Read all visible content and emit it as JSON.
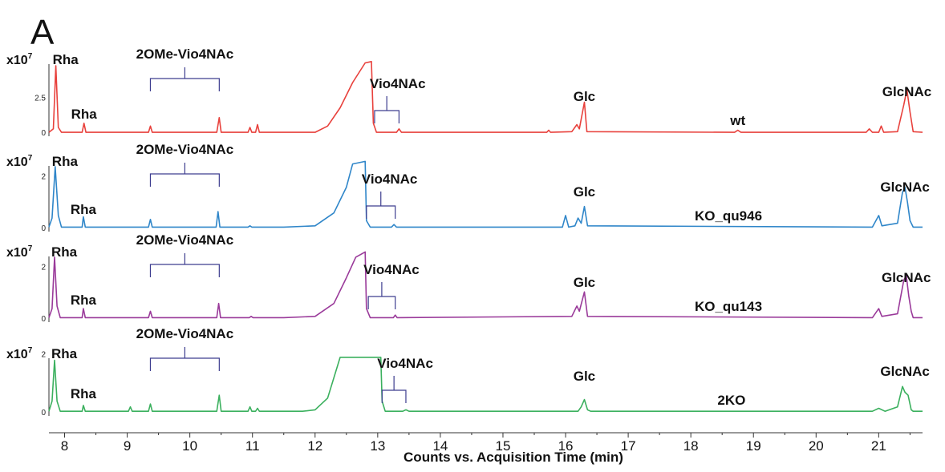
{
  "panel_label": "A",
  "chart_data": {
    "type": "line",
    "xlabel": "Counts vs. Acquisition Time (min)",
    "xlim": [
      7.75,
      21.7
    ],
    "xticks": [
      8,
      9,
      10,
      11,
      12,
      13,
      14,
      15,
      16,
      17,
      18,
      19,
      20,
      21
    ],
    "ylabel_prefix": "x10",
    "ylabel_exp": "7",
    "grid": false,
    "series": [
      {
        "name": "wt",
        "color": "#e8413c",
        "ylim": [
          -0.4,
          5.2
        ],
        "yticks": [
          "0",
          "2.5"
        ],
        "points": [
          [
            7.75,
            0.05
          ],
          [
            7.82,
            0.3
          ],
          [
            7.86,
            4.8
          ],
          [
            7.9,
            0.4
          ],
          [
            7.95,
            0.05
          ],
          [
            8.28,
            0.05
          ],
          [
            8.31,
            0.7
          ],
          [
            8.34,
            0.05
          ],
          [
            9.34,
            0.05
          ],
          [
            9.37,
            0.5
          ],
          [
            9.4,
            0.05
          ],
          [
            10.43,
            0.05
          ],
          [
            10.47,
            1.1
          ],
          [
            10.5,
            0.05
          ],
          [
            10.93,
            0.05
          ],
          [
            10.96,
            0.4
          ],
          [
            10.99,
            0.05
          ],
          [
            11.05,
            0.05
          ],
          [
            11.08,
            0.6
          ],
          [
            11.11,
            0.05
          ],
          [
            12.0,
            0.05
          ],
          [
            12.2,
            0.5
          ],
          [
            12.4,
            1.8
          ],
          [
            12.6,
            3.6
          ],
          [
            12.8,
            5.0
          ],
          [
            12.9,
            5.1
          ],
          [
            12.93,
            0.7
          ],
          [
            12.98,
            0.05
          ],
          [
            13.3,
            0.05
          ],
          [
            13.34,
            0.3
          ],
          [
            13.38,
            0.05
          ],
          [
            15.7,
            0.05
          ],
          [
            15.73,
            0.2
          ],
          [
            15.76,
            0.05
          ],
          [
            16.1,
            0.1
          ],
          [
            16.18,
            0.6
          ],
          [
            16.22,
            0.3
          ],
          [
            16.3,
            2.2
          ],
          [
            16.34,
            0.1
          ],
          [
            18.7,
            0.05
          ],
          [
            18.75,
            0.2
          ],
          [
            18.8,
            0.05
          ],
          [
            20.8,
            0.05
          ],
          [
            20.85,
            0.3
          ],
          [
            20.9,
            0.05
          ],
          [
            21.0,
            0.05
          ],
          [
            21.04,
            0.5
          ],
          [
            21.08,
            0.05
          ],
          [
            21.3,
            0.1
          ],
          [
            21.4,
            2.0
          ],
          [
            21.45,
            3.1
          ],
          [
            21.5,
            1.5
          ],
          [
            21.55,
            0.1
          ],
          [
            21.7,
            0.05
          ]
        ],
        "annotations": [
          {
            "text": "Rha",
            "x": 7.86
          },
          {
            "text": "Rha",
            "x": 8.31
          },
          {
            "text": "2OMe-Vio4NAc",
            "x1": 9.37,
            "x2": 10.47
          },
          {
            "text": "Vio4NAc",
            "x1": 12.95,
            "x2": 13.34
          },
          {
            "text": "Glc",
            "x": 16.3
          },
          {
            "text": "wt",
            "x": 18.75
          },
          {
            "text": "GlcNAc",
            "x": 21.45
          }
        ]
      },
      {
        "name": "KO_qu946",
        "color": "#2f86c9",
        "ylim": [
          -0.2,
          2.6
        ],
        "yticks": [
          "0",
          "2"
        ],
        "points": [
          [
            7.75,
            0.05
          ],
          [
            7.8,
            0.4
          ],
          [
            7.85,
            2.4
          ],
          [
            7.9,
            0.5
          ],
          [
            7.95,
            0.05
          ],
          [
            8.28,
            0.05
          ],
          [
            8.3,
            0.45
          ],
          [
            8.33,
            0.05
          ],
          [
            9.34,
            0.05
          ],
          [
            9.37,
            0.35
          ],
          [
            9.4,
            0.05
          ],
          [
            10.42,
            0.05
          ],
          [
            10.45,
            0.65
          ],
          [
            10.48,
            0.05
          ],
          [
            10.93,
            0.05
          ],
          [
            10.96,
            0.1
          ],
          [
            10.99,
            0.05
          ],
          [
            11.5,
            0.05
          ],
          [
            12.0,
            0.1
          ],
          [
            12.3,
            0.6
          ],
          [
            12.5,
            1.6
          ],
          [
            12.6,
            2.5
          ],
          [
            12.8,
            2.6
          ],
          [
            12.82,
            0.3
          ],
          [
            12.88,
            0.05
          ],
          [
            13.22,
            0.05
          ],
          [
            13.26,
            0.15
          ],
          [
            13.3,
            0.05
          ],
          [
            15.95,
            0.05
          ],
          [
            16.0,
            0.5
          ],
          [
            16.05,
            0.05
          ],
          [
            16.15,
            0.1
          ],
          [
            16.2,
            0.4
          ],
          [
            16.25,
            0.2
          ],
          [
            16.3,
            0.85
          ],
          [
            16.35,
            0.1
          ],
          [
            20.9,
            0.05
          ],
          [
            21.0,
            0.5
          ],
          [
            21.05,
            0.1
          ],
          [
            21.3,
            0.2
          ],
          [
            21.38,
            1.4
          ],
          [
            21.42,
            1.6
          ],
          [
            21.46,
            1.0
          ],
          [
            21.5,
            0.3
          ],
          [
            21.55,
            0.05
          ],
          [
            21.7,
            0.05
          ]
        ],
        "annotations": [
          {
            "text": "Rha",
            "x": 7.85
          },
          {
            "text": "Rha",
            "x": 8.3
          },
          {
            "text": "2OMe-Vio4NAc",
            "x1": 9.37,
            "x2": 10.47
          },
          {
            "text": "Vio4NAc",
            "x1": 12.82,
            "x2": 13.28
          },
          {
            "text": "Glc",
            "x": 16.3
          },
          {
            "text": "KO_qu946",
            "x": 18.6
          },
          {
            "text": "GlcNAc",
            "x": 21.42
          }
        ]
      },
      {
        "name": "KO_qu143",
        "color": "#9a3a9a",
        "ylim": [
          -0.2,
          2.6
        ],
        "yticks": [
          "0",
          "2"
        ],
        "points": [
          [
            7.75,
            0.05
          ],
          [
            7.8,
            0.4
          ],
          [
            7.84,
            2.4
          ],
          [
            7.88,
            0.5
          ],
          [
            7.93,
            0.05
          ],
          [
            8.28,
            0.05
          ],
          [
            8.3,
            0.4
          ],
          [
            8.33,
            0.05
          ],
          [
            9.34,
            0.05
          ],
          [
            9.37,
            0.3
          ],
          [
            9.4,
            0.05
          ],
          [
            10.43,
            0.05
          ],
          [
            10.46,
            0.6
          ],
          [
            10.49,
            0.05
          ],
          [
            10.95,
            0.05
          ],
          [
            10.98,
            0.1
          ],
          [
            11.01,
            0.05
          ],
          [
            11.5,
            0.05
          ],
          [
            12.0,
            0.1
          ],
          [
            12.3,
            0.6
          ],
          [
            12.5,
            1.6
          ],
          [
            12.65,
            2.4
          ],
          [
            12.8,
            2.6
          ],
          [
            12.82,
            0.4
          ],
          [
            12.88,
            0.05
          ],
          [
            13.25,
            0.05
          ],
          [
            13.28,
            0.15
          ],
          [
            13.31,
            0.05
          ],
          [
            16.1,
            0.1
          ],
          [
            16.18,
            0.5
          ],
          [
            16.22,
            0.3
          ],
          [
            16.3,
            1.05
          ],
          [
            16.35,
            0.1
          ],
          [
            20.9,
            0.05
          ],
          [
            21.0,
            0.4
          ],
          [
            21.05,
            0.1
          ],
          [
            21.3,
            0.2
          ],
          [
            21.4,
            1.5
          ],
          [
            21.44,
            1.7
          ],
          [
            21.48,
            0.9
          ],
          [
            21.52,
            0.3
          ],
          [
            21.55,
            0.05
          ],
          [
            21.7,
            0.05
          ]
        ],
        "annotations": [
          {
            "text": "Rha",
            "x": 7.84
          },
          {
            "text": "Rha",
            "x": 8.3
          },
          {
            "text": "2OMe-Vio4NAc",
            "x1": 9.37,
            "x2": 10.47
          },
          {
            "text": "Vio4NAc",
            "x1": 12.85,
            "x2": 13.28
          },
          {
            "text": "Glc",
            "x": 16.3
          },
          {
            "text": "KO_qu143",
            "x": 18.6
          },
          {
            "text": "GlcNAc",
            "x": 21.44
          }
        ]
      },
      {
        "name": "2KO",
        "color": "#3bb05e",
        "ylim": [
          -0.2,
          2.0
        ],
        "yticks": [
          "0",
          "2"
        ],
        "points": [
          [
            7.75,
            0.05
          ],
          [
            7.8,
            0.4
          ],
          [
            7.84,
            1.8
          ],
          [
            7.88,
            0.4
          ],
          [
            7.93,
            0.05
          ],
          [
            8.28,
            0.05
          ],
          [
            8.3,
            0.25
          ],
          [
            8.33,
            0.05
          ],
          [
            9.02,
            0.05
          ],
          [
            9.05,
            0.2
          ],
          [
            9.08,
            0.05
          ],
          [
            9.34,
            0.05
          ],
          [
            9.37,
            0.3
          ],
          [
            9.4,
            0.05
          ],
          [
            10.43,
            0.05
          ],
          [
            10.47,
            0.6
          ],
          [
            10.5,
            0.05
          ],
          [
            10.93,
            0.05
          ],
          [
            10.96,
            0.2
          ],
          [
            10.99,
            0.05
          ],
          [
            11.05,
            0.05
          ],
          [
            11.08,
            0.15
          ],
          [
            11.11,
            0.05
          ],
          [
            11.8,
            0.05
          ],
          [
            12.0,
            0.1
          ],
          [
            12.2,
            0.5
          ],
          [
            12.3,
            1.2
          ],
          [
            12.4,
            1.9
          ],
          [
            12.42,
            1.9
          ],
          [
            13.05,
            1.9
          ],
          [
            13.07,
            0.4
          ],
          [
            13.12,
            0.05
          ],
          [
            13.4,
            0.05
          ],
          [
            13.45,
            0.1
          ],
          [
            13.5,
            0.05
          ],
          [
            16.2,
            0.05
          ],
          [
            16.25,
            0.2
          ],
          [
            16.3,
            0.45
          ],
          [
            16.35,
            0.1
          ],
          [
            16.4,
            0.05
          ],
          [
            20.9,
            0.05
          ],
          [
            21.0,
            0.15
          ],
          [
            21.1,
            0.05
          ],
          [
            21.3,
            0.2
          ],
          [
            21.38,
            0.9
          ],
          [
            21.42,
            0.7
          ],
          [
            21.47,
            0.6
          ],
          [
            21.52,
            0.1
          ],
          [
            21.55,
            0.05
          ],
          [
            21.7,
            0.05
          ]
        ],
        "annotations": [
          {
            "text": "Rha",
            "x": 7.84
          },
          {
            "text": "Rha",
            "x": 8.3
          },
          {
            "text": "2OMe-Vio4NAc",
            "x1": 9.37,
            "x2": 10.47
          },
          {
            "text": "Vio4NAc",
            "x1": 13.07,
            "x2": 13.45
          },
          {
            "text": "Glc",
            "x": 16.3
          },
          {
            "text": "2KO",
            "x": 18.65
          },
          {
            "text": "GlcNAc",
            "x": 21.42
          }
        ]
      }
    ]
  }
}
